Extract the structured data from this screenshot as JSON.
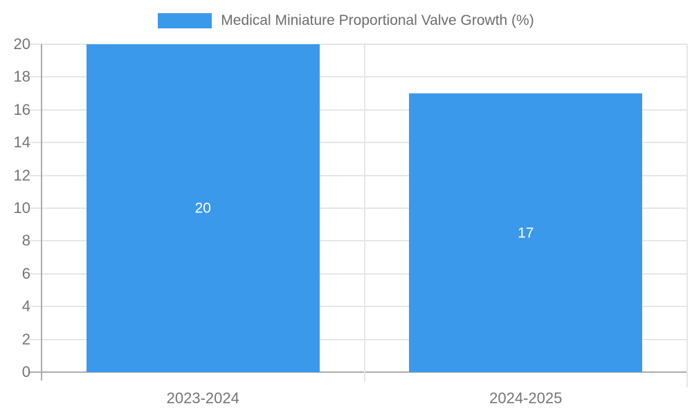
{
  "legend": {
    "label": "Medical Miniature Proportional Valve Growth (%)",
    "swatch_color": "#3b99ec",
    "position": "top-center"
  },
  "chart_data": {
    "type": "bar",
    "title": "Medical Miniature Proportional Valve Growth (%)",
    "categories": [
      "2023-2024",
      "2024-2025"
    ],
    "values": [
      20,
      17
    ],
    "data_labels": [
      "20",
      "17"
    ],
    "xlabel": "",
    "ylabel": "",
    "ylim": [
      0,
      20
    ],
    "ytick_step": 2,
    "ytick_labels": [
      "0",
      "2",
      "4",
      "6",
      "8",
      "10",
      "12",
      "14",
      "16",
      "18",
      "20"
    ],
    "grid": true,
    "legend_position": "top",
    "colors": {
      "bar": "#3b99ec",
      "grid": "#e6e6e6",
      "axis": "#ababab",
      "tick_text": "#757575",
      "data_label_text": "#ffffff",
      "legend_text": "#6e6e6e"
    }
  }
}
